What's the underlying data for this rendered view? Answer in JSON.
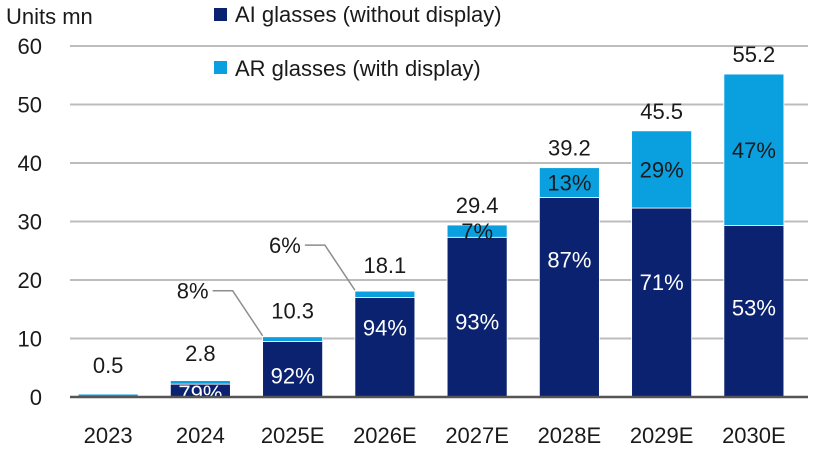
{
  "chart_data": {
    "type": "bar",
    "stacked": true,
    "title": "",
    "ylabel": "Units mn",
    "xlabel": "",
    "ylim": [
      0,
      60
    ],
    "yticks": [
      0,
      10,
      20,
      30,
      40,
      50,
      60
    ],
    "grid": true,
    "legend_position": "top-center",
    "categories": [
      "2023",
      "2024",
      "2025E",
      "2026E",
      "2027E",
      "2028E",
      "2029E",
      "2030E"
    ],
    "totals": [
      0.5,
      2.8,
      10.3,
      18.1,
      29.4,
      39.2,
      45.5,
      55.2
    ],
    "total_labels": [
      "0.5",
      "2.8",
      "10.3",
      "18.1",
      "29.4",
      "39.2",
      "45.5",
      "55.2"
    ],
    "series": [
      {
        "name": "AI glasses (without display)",
        "color": "#0a2270",
        "share": [
          0.0,
          0.79,
          0.92,
          0.94,
          0.93,
          0.87,
          0.71,
          0.53
        ],
        "values": [
          0.0,
          2.2,
          9.5,
          17.0,
          27.3,
          34.1,
          32.3,
          29.3
        ],
        "labels": [
          "",
          "79%",
          "92%",
          "94%",
          "93%",
          "87%",
          "71%",
          "53%"
        ]
      },
      {
        "name": "AR glasses (with display)",
        "color": "#0aa0e0",
        "share": [
          1.0,
          0.21,
          0.08,
          0.06,
          0.07,
          0.13,
          0.29,
          0.47
        ],
        "values": [
          0.5,
          0.6,
          0.8,
          1.1,
          2.1,
          5.1,
          13.2,
          25.9
        ],
        "labels": [
          "",
          "",
          "8%",
          "6%",
          "7%",
          "13%",
          "29%",
          "47%"
        ]
      }
    ],
    "callouts": [
      {
        "category": "2025E",
        "series": "AR glasses (with display)",
        "text": "8%"
      },
      {
        "category": "2026E",
        "series": "AR glasses (with display)",
        "text": "6%"
      }
    ]
  }
}
